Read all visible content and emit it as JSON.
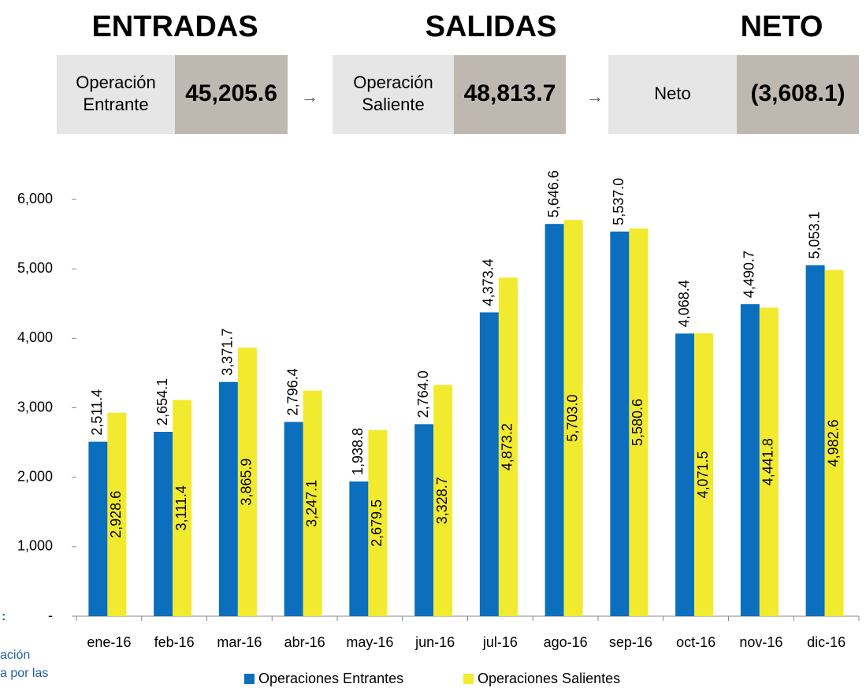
{
  "header": {
    "sections": [
      {
        "title": "ENTRADAS",
        "label": "Operación Entrante",
        "amount": "45,205.6"
      },
      {
        "title": "SALIDAS",
        "label": "Operación Saliente",
        "amount": "48,813.7"
      },
      {
        "title": "NETO",
        "label": "Neto",
        "amount": "(3,608.1)"
      }
    ],
    "arrow": "→"
  },
  "side_note": [
    ":",
    "ación",
    "a por las"
  ],
  "chart_data": {
    "type": "bar",
    "categories": [
      "ene-16",
      "feb-16",
      "mar-16",
      "abr-16",
      "may-16",
      "jun-16",
      "jul-16",
      "ago-16",
      "sep-16",
      "oct-16",
      "nov-16",
      "dic-16"
    ],
    "series": [
      {
        "name": "Operaciones Entrantes",
        "color": "#0b6fbe",
        "values": [
          2511.4,
          2654.1,
          3371.7,
          2796.4,
          1938.8,
          2764.0,
          4373.4,
          5646.6,
          5537.0,
          4068.4,
          4490.7,
          5053.1
        ],
        "value_labels": [
          "2,511.4",
          "2,654.1",
          "3,371.7",
          "2,796.4",
          "1,938.8",
          "2,764.0",
          "4,373.4",
          "5,646.6",
          "5,537.0",
          "4,068.4",
          "4,490.7",
          "5,053.1"
        ]
      },
      {
        "name": "Operaciones Salientes",
        "color": "#f2ea2e",
        "values": [
          2928.6,
          3111.4,
          3865.9,
          3247.1,
          2679.5,
          3328.7,
          4873.2,
          5703.0,
          5580.6,
          4071.5,
          4441.8,
          4982.6
        ],
        "value_labels": [
          "2,928.6",
          "3,111.4",
          "3,865.9",
          "3,247.1",
          "2,679.5",
          "3,328.7",
          "4,873.2",
          "5,703.0",
          "5,580.6",
          "4,071.5",
          "4,441.8",
          "4,982.6"
        ]
      }
    ],
    "ylim": [
      0,
      6000
    ],
    "yticks": [
      {
        "value": 0,
        "label": "-"
      },
      {
        "value": 1000,
        "label": "1,000"
      },
      {
        "value": 2000,
        "label": "2,000"
      },
      {
        "value": 3000,
        "label": "3,000"
      },
      {
        "value": 4000,
        "label": "4,000"
      },
      {
        "value": 5000,
        "label": "5,000"
      },
      {
        "value": 6000,
        "label": "6,000"
      }
    ],
    "legend": "bottom"
  }
}
